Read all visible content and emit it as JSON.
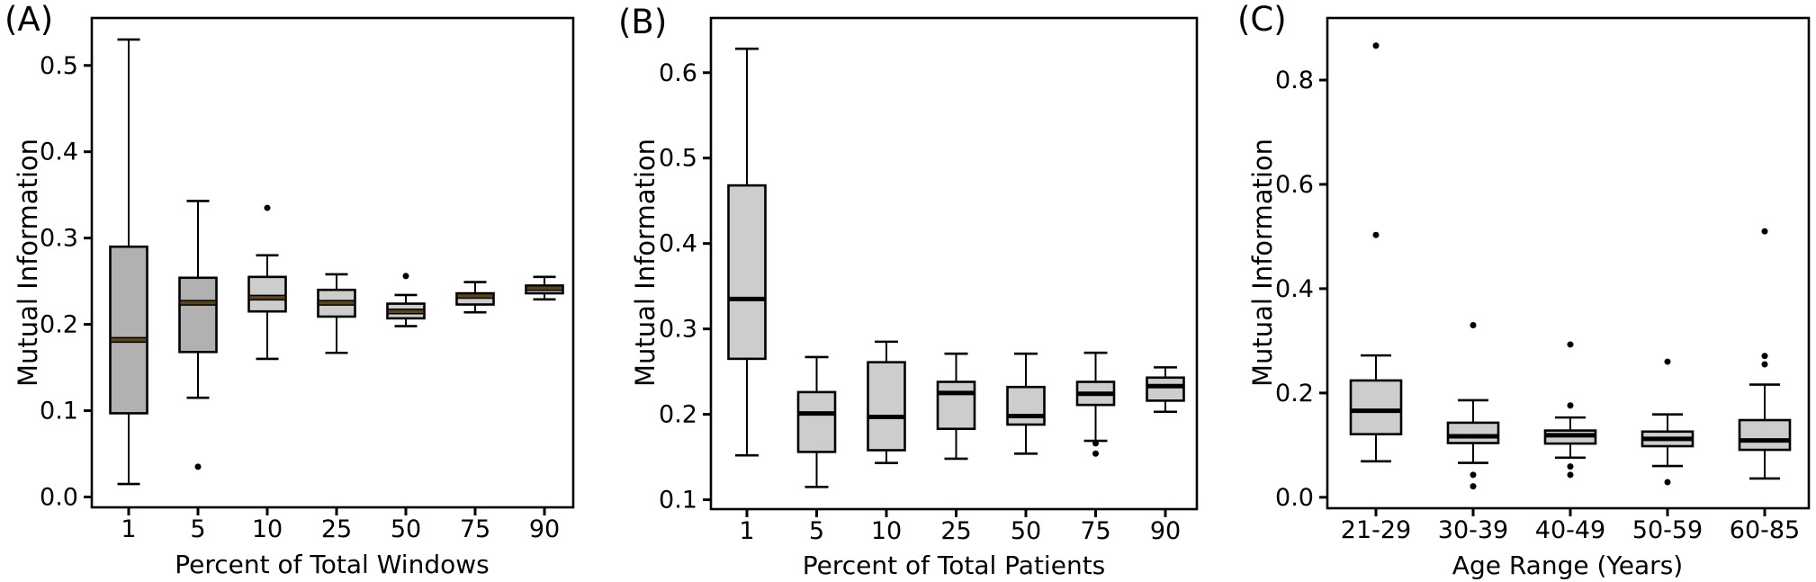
{
  "chart_data": [
    {
      "type": "boxplot",
      "id": "A",
      "panel": "(A)",
      "xlabel": "Percent of Total Windows",
      "ylabel": "Mutual Information",
      "categories": [
        "1",
        "5",
        "10",
        "25",
        "50",
        "75",
        "90"
      ],
      "yticks": [
        0.0,
        0.1,
        0.2,
        0.3,
        0.4,
        0.5
      ],
      "ytick_labels": [
        "0.0",
        "0.1",
        "0.2",
        "0.3",
        "0.4",
        "0.5"
      ],
      "ylim": [
        -0.012,
        0.555
      ],
      "grid": false,
      "median_color": "#5c4415",
      "box_stroke": "#000000",
      "boxes": [
        {
          "category": "1",
          "lo": 0.015,
          "q1": 0.097,
          "med": 0.182,
          "q3": 0.29,
          "hi": 0.53,
          "outliers": [],
          "fill": "#b1b1b1"
        },
        {
          "category": "5",
          "lo": 0.115,
          "q1": 0.168,
          "med": 0.225,
          "q3": 0.254,
          "hi": 0.343,
          "outliers": [
            0.035
          ],
          "fill": "#b1b1b1"
        },
        {
          "category": "10",
          "lo": 0.16,
          "q1": 0.215,
          "med": 0.231,
          "q3": 0.255,
          "hi": 0.28,
          "outliers": [
            0.335
          ],
          "fill": "#cdcdcd"
        },
        {
          "category": "25",
          "lo": 0.167,
          "q1": 0.209,
          "med": 0.225,
          "q3": 0.24,
          "hi": 0.258,
          "outliers": [],
          "fill": "#cdcdcd"
        },
        {
          "category": "50",
          "lo": 0.198,
          "q1": 0.207,
          "med": 0.215,
          "q3": 0.224,
          "hi": 0.234,
          "outliers": [
            0.256
          ],
          "fill": "#cdcdcd"
        },
        {
          "category": "75",
          "lo": 0.214,
          "q1": 0.223,
          "med": 0.233,
          "q3": 0.236,
          "hi": 0.249,
          "outliers": [],
          "fill": "#cdcdcd"
        },
        {
          "category": "90",
          "lo": 0.229,
          "q1": 0.236,
          "med": 0.242,
          "q3": 0.245,
          "hi": 0.255,
          "outliers": [],
          "fill": "#cdcdcd"
        }
      ]
    },
    {
      "type": "boxplot",
      "id": "B",
      "panel": "(B)",
      "xlabel": "Percent of Total Patients",
      "ylabel": "Mutual Information",
      "categories": [
        "1",
        "5",
        "10",
        "25",
        "50",
        "75",
        "90"
      ],
      "yticks": [
        0.1,
        0.2,
        0.3,
        0.4,
        0.5,
        0.6
      ],
      "ytick_labels": [
        "0.1",
        "0.2",
        "0.3",
        "0.4",
        "0.5",
        "0.6"
      ],
      "ylim": [
        0.089,
        0.664
      ],
      "grid": false,
      "median_color": "#000000",
      "box_stroke": "#000000",
      "boxes": [
        {
          "category": "1",
          "lo": 0.152,
          "q1": 0.265,
          "med": 0.335,
          "q3": 0.468,
          "hi": 0.628,
          "outliers": [],
          "fill": "#cdcdcd"
        },
        {
          "category": "5",
          "lo": 0.115,
          "q1": 0.156,
          "med": 0.201,
          "q3": 0.226,
          "hi": 0.267,
          "outliers": [],
          "fill": "#cdcdcd"
        },
        {
          "category": "10",
          "lo": 0.143,
          "q1": 0.158,
          "med": 0.197,
          "q3": 0.261,
          "hi": 0.285,
          "outliers": [],
          "fill": "#cdcdcd"
        },
        {
          "category": "25",
          "lo": 0.148,
          "q1": 0.183,
          "med": 0.225,
          "q3": 0.238,
          "hi": 0.271,
          "outliers": [],
          "fill": "#cdcdcd"
        },
        {
          "category": "50",
          "lo": 0.154,
          "q1": 0.188,
          "med": 0.198,
          "q3": 0.232,
          "hi": 0.271,
          "outliers": [],
          "fill": "#cdcdcd"
        },
        {
          "category": "75",
          "lo": 0.169,
          "q1": 0.211,
          "med": 0.224,
          "q3": 0.238,
          "hi": 0.272,
          "outliers": [
            0.166,
            0.154
          ],
          "fill": "#cdcdcd"
        },
        {
          "category": "90",
          "lo": 0.203,
          "q1": 0.216,
          "med": 0.233,
          "q3": 0.243,
          "hi": 0.255,
          "outliers": [],
          "fill": "#cdcdcd"
        }
      ]
    },
    {
      "type": "boxplot",
      "id": "C",
      "panel": "(C)",
      "xlabel": "Age Range (Years)",
      "ylabel": "Mutual Information",
      "categories": [
        "21-29",
        "30-39",
        "40-49",
        "50-59",
        "60-85"
      ],
      "yticks": [
        0.0,
        0.2,
        0.4,
        0.6,
        0.8
      ],
      "ytick_labels": [
        "0.0",
        "0.2",
        "0.4",
        "0.6",
        "0.8"
      ],
      "ylim": [
        -0.021,
        0.919
      ],
      "grid": false,
      "median_color": "#000000",
      "box_stroke": "#000000",
      "boxes": [
        {
          "category": "21-29",
          "lo": 0.069,
          "q1": 0.121,
          "med": 0.166,
          "q3": 0.224,
          "hi": 0.272,
          "outliers": [
            0.866,
            0.503
          ],
          "fill": "#cdcdcd"
        },
        {
          "category": "30-39",
          "lo": 0.066,
          "q1": 0.104,
          "med": 0.117,
          "q3": 0.143,
          "hi": 0.186,
          "outliers": [
            0.33,
            0.043,
            0.021
          ],
          "fill": "#cdcdcd"
        },
        {
          "category": "40-49",
          "lo": 0.076,
          "q1": 0.103,
          "med": 0.119,
          "q3": 0.128,
          "hi": 0.153,
          "outliers": [
            0.293,
            0.176,
            0.059,
            0.043
          ],
          "fill": "#cdcdcd"
        },
        {
          "category": "50-59",
          "lo": 0.06,
          "q1": 0.098,
          "med": 0.112,
          "q3": 0.126,
          "hi": 0.159,
          "outliers": [
            0.26,
            0.029
          ],
          "fill": "#cdcdcd"
        },
        {
          "category": "60-85",
          "lo": 0.036,
          "q1": 0.091,
          "med": 0.109,
          "q3": 0.148,
          "hi": 0.216,
          "outliers": [
            0.51,
            0.271,
            0.255
          ],
          "fill": "#cdcdcd"
        }
      ]
    }
  ]
}
